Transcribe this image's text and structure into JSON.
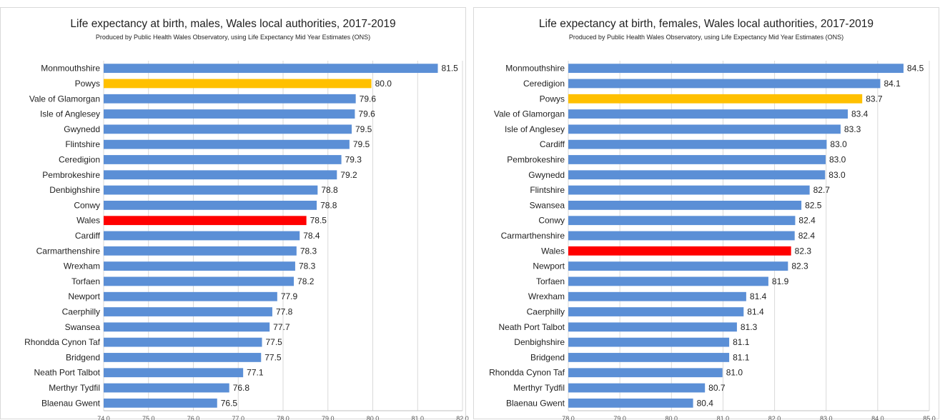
{
  "chart_data": [
    {
      "type": "bar",
      "orientation": "horizontal",
      "title": "Life expectancy at birth, males, Wales local authorities, 2017-2019",
      "subtitle": "Produced by Public Health Wales Observatory, using Life Expectancy Mid Year Estimates (ONS)",
      "categories": [
        "Monmouthshire",
        "Powys",
        "Vale of Glamorgan",
        "Isle of Anglesey",
        "Gwynedd",
        "Flintshire",
        "Ceredigion",
        "Pembrokeshire",
        "Denbighshire",
        "Conwy",
        "Wales",
        "Cardiff",
        "Carmarthenshire",
        "Wrexham",
        "Torfaen",
        "Newport",
        "Caerphilly",
        "Swansea",
        "Rhondda Cynon Taf",
        "Bridgend",
        "Neath Port Talbot",
        "Merthyr Tydfil",
        "Blaenau Gwent"
      ],
      "values": [
        81.45,
        79.97,
        79.62,
        79.6,
        79.53,
        79.48,
        79.3,
        79.2,
        78.77,
        78.75,
        78.52,
        78.37,
        78.3,
        78.27,
        78.24,
        77.87,
        77.76,
        77.7,
        77.53,
        77.51,
        77.11,
        76.8,
        76.53
      ],
      "labels": [
        "81.5",
        "80.0",
        "79.6",
        "79.6",
        "79.5",
        "79.5",
        "79.3",
        "79.2",
        "78.8",
        "78.8",
        "78.5",
        "78.4",
        "78.3",
        "78.3",
        "78.2",
        "77.9",
        "77.8",
        "77.7",
        "77.5",
        "77.5",
        "77.1",
        "76.8",
        "76.5"
      ],
      "highlight": {
        "Powys": "#ffc000",
        "Wales": "#ff0000"
      },
      "bar_color": "#5b8fd6",
      "xlim": [
        74,
        82
      ],
      "xticks": [
        "74.0",
        "75.0",
        "76.0",
        "77.0",
        "78.0",
        "79.0",
        "80.0",
        "81.0",
        "82.0"
      ],
      "grid": true
    },
    {
      "type": "bar",
      "orientation": "horizontal",
      "title": "Life expectancy at birth, females, Wales local authorities, 2017-2019",
      "subtitle": "Produced by Public Health Wales Observatory, using Life Expectancy Mid Year Estimates (ONS)",
      "categories": [
        "Monmouthshire",
        "Ceredigion",
        "Powys",
        "Vale of Glamorgan",
        "Isle of Anglesey",
        "Cardiff",
        "Pembrokeshire",
        "Gwynedd",
        "Flintshire",
        "Swansea",
        "Conwy",
        "Carmarthenshire",
        "Wales",
        "Newport",
        "Torfaen",
        "Wrexham",
        "Caerphilly",
        "Neath Port Talbot",
        "Denbighshire",
        "Bridgend",
        "Rhondda Cynon Taf",
        "Merthyr Tydfil",
        "Blaenau Gwent"
      ],
      "values": [
        84.5,
        84.05,
        83.7,
        83.42,
        83.28,
        83.01,
        82.99,
        82.98,
        82.68,
        82.52,
        82.4,
        82.39,
        82.32,
        82.26,
        81.88,
        81.45,
        81.4,
        81.27,
        81.12,
        81.12,
        80.99,
        80.65,
        80.42
      ],
      "labels": [
        "84.5",
        "84.1",
        "83.7",
        "83.4",
        "83.3",
        "83.0",
        "83.0",
        "83.0",
        "82.7",
        "82.5",
        "82.4",
        "82.4",
        "82.3",
        "82.3",
        "81.9",
        "81.4",
        "81.4",
        "81.3",
        "81.1",
        "81.1",
        "81.0",
        "80.7",
        "80.4"
      ],
      "highlight": {
        "Powys": "#ffc000",
        "Wales": "#ff0000"
      },
      "bar_color": "#5b8fd6",
      "xlim": [
        78,
        85
      ],
      "xticks": [
        "78.0",
        "79.0",
        "80.0",
        "81.0",
        "82.0",
        "83.0",
        "84.0",
        "85.0"
      ],
      "grid": true
    }
  ]
}
